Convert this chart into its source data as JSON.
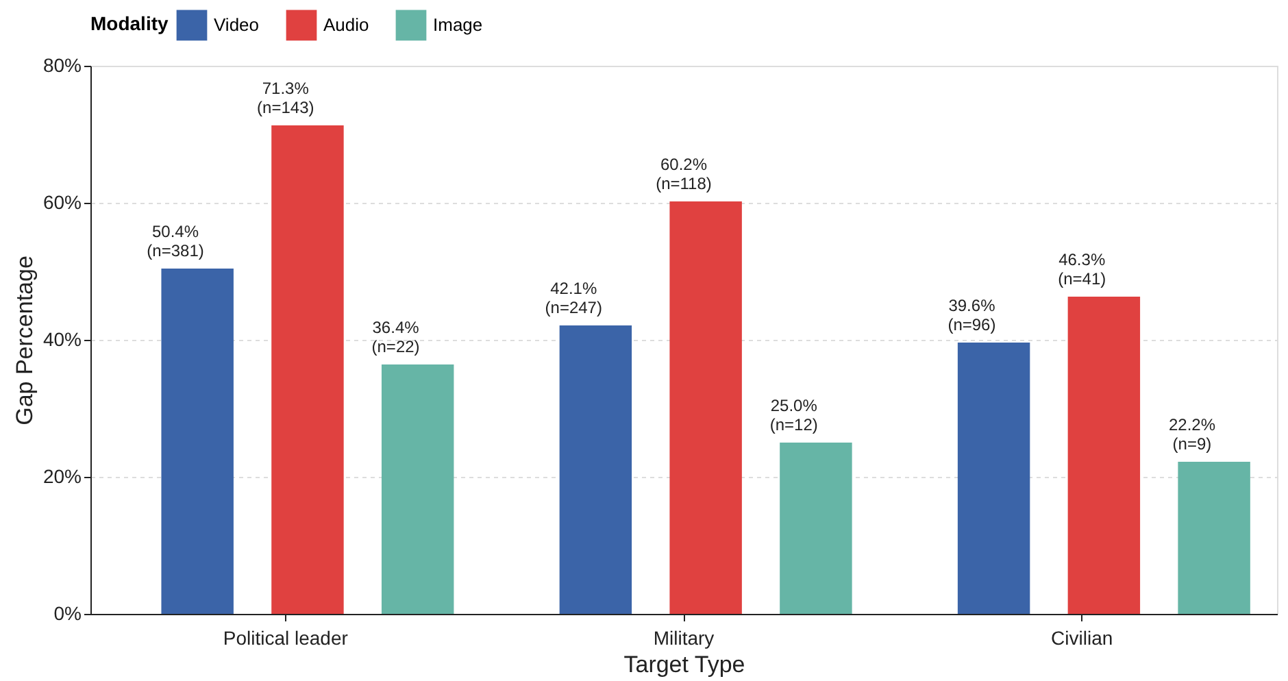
{
  "chart_data": {
    "type": "bar",
    "xlabel": "Target Type",
    "ylabel": "Gap Percentage",
    "legend_title": "Modality",
    "categories": [
      "Political leader",
      "Military",
      "Civilian"
    ],
    "series": [
      {
        "name": "Video",
        "color": "#3b64a8",
        "values": [
          50.4,
          42.1,
          39.6
        ],
        "value_labels": [
          "50.4%\n(n=381)",
          "42.1%\n(n=247)",
          "39.6%\n(n=96)"
        ]
      },
      {
        "name": "Audio",
        "color": "#e04140",
        "values": [
          71.3,
          60.2,
          46.3
        ],
        "value_labels": [
          "71.3%\n(n=143)",
          "60.2%\n(n=118)",
          "46.3%\n(n=41)"
        ]
      },
      {
        "name": "Image",
        "color": "#66b5a6",
        "values": [
          36.4,
          25.0,
          22.2
        ],
        "value_labels": [
          "36.4%\n(n=22)",
          "25.0%\n(n=12)",
          "22.2%\n(n=9)"
        ]
      }
    ],
    "ylim": [
      0,
      80
    ],
    "yticks": [
      {
        "value": 0,
        "label": "0%"
      },
      {
        "value": 20,
        "label": "20%"
      },
      {
        "value": 40,
        "label": "40%"
      },
      {
        "value": 60,
        "label": "60%"
      },
      {
        "value": 80,
        "label": "80%"
      }
    ],
    "grid": "y",
    "legend": "top"
  }
}
